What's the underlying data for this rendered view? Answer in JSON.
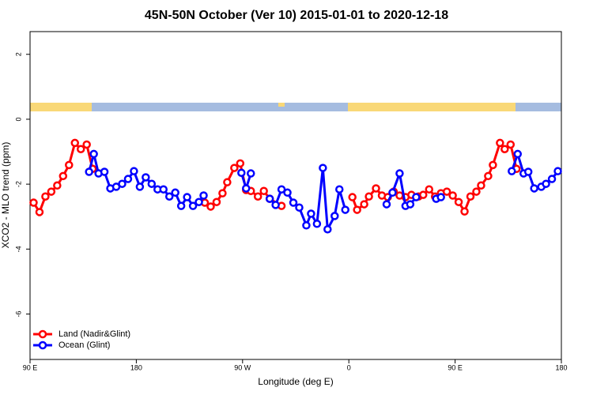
{
  "chart_data": {
    "type": "line",
    "title": "45N-50N October (Ver 10)   2015-01-01 to 2020-12-18",
    "x_label": "Longitude (deg E)",
    "y_label": "XCO2 - MLO trend (ppm)",
    "xlim": [
      90,
      540
    ],
    "xticks": [
      {
        "value": 90,
        "label": "90 E"
      },
      180,
      {
        "value": 270,
        "label": "90 W"
      },
      {
        "value": 360,
        "label": "0"
      },
      {
        "value": 450,
        "label": "90 E"
      },
      {
        "value": 540,
        "label": "180"
      }
    ],
    "ylim": [
      -7.4,
      2.7
    ],
    "yticks": [
      2,
      0,
      -2,
      -4,
      -6
    ],
    "legend": "bottomleft",
    "series": [
      {
        "name": "Land (Nadir&Glint)",
        "color": "#ff0000",
        "x": [
          93,
          98,
          103,
          108,
          113,
          118,
          123,
          128,
          133,
          138,
          143,
          null,
          238,
          243,
          248,
          253,
          257,
          263,
          268,
          273,
          277,
          283,
          288,
          293,
          303,
          null,
          363,
          367,
          373,
          377,
          383,
          388,
          393,
          398,
          403,
          408,
          413,
          419,
          423,
          428,
          433,
          438,
          443,
          448,
          453,
          458,
          463,
          468,
          472,
          478,
          482,
          488,
          492,
          497,
          502
        ],
        "values": [
          -2.57,
          -2.86,
          -2.38,
          -2.23,
          -2.04,
          -1.75,
          -1.41,
          -0.73,
          -0.92,
          -0.78,
          -1.53,
          null,
          -2.57,
          -2.69,
          -2.55,
          -2.28,
          -1.94,
          -1.5,
          -1.36,
          -2.18,
          -2.21,
          -2.38,
          -2.21,
          -2.45,
          -2.67,
          null,
          -2.4,
          -2.79,
          -2.62,
          -2.38,
          -2.13,
          -2.35,
          -2.4,
          -2.23,
          -2.35,
          -2.4,
          -2.33,
          -2.38,
          -2.33,
          -2.16,
          -2.38,
          -2.28,
          -2.23,
          -2.35,
          -2.55,
          -2.84,
          -2.38,
          -2.23,
          -2.04,
          -1.75,
          -1.41,
          -0.73,
          -0.92,
          -0.78,
          -1.53
        ]
      },
      {
        "name": "Ocean (Glint)",
        "color": "#0000ff",
        "x": [
          140,
          144,
          148,
          153,
          158,
          163,
          168,
          173,
          178,
          183,
          188,
          193,
          198,
          203,
          208,
          213,
          218,
          223,
          228,
          233,
          237,
          null,
          269,
          273,
          277,
          null,
          293,
          298,
          303,
          308,
          313,
          318,
          324,
          328,
          333,
          338,
          342,
          348,
          352,
          357,
          null,
          392,
          397,
          403,
          408,
          412,
          417,
          null,
          434,
          438,
          null,
          498,
          503,
          508,
          512,
          517,
          523,
          527,
          532,
          537
        ],
        "values": [
          -1.62,
          -1.07,
          -1.67,
          -1.62,
          -2.13,
          -2.08,
          -1.99,
          -1.84,
          -1.6,
          -2.08,
          -1.79,
          -1.99,
          -2.16,
          -2.16,
          -2.38,
          -2.26,
          -2.67,
          -2.4,
          -2.67,
          -2.55,
          -2.35,
          null,
          -1.65,
          -2.13,
          -1.67,
          null,
          -2.45,
          -2.64,
          -2.16,
          -2.26,
          -2.57,
          -2.72,
          -3.27,
          -2.91,
          -3.22,
          -1.5,
          -3.39,
          -2.98,
          -2.16,
          -2.79,
          null,
          -2.62,
          -2.26,
          -1.67,
          -2.67,
          -2.62,
          -2.4,
          null,
          -2.45,
          -2.4,
          null,
          -1.6,
          -1.07,
          -1.67,
          -1.62,
          -2.13,
          -2.08,
          -1.99,
          -1.84,
          -1.6
        ]
      }
    ]
  }
}
